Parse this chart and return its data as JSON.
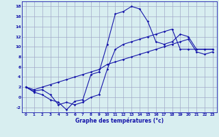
{
  "xlabel": "Graphe des températures (°c)",
  "hours": [
    0,
    1,
    2,
    3,
    4,
    5,
    6,
    7,
    8,
    9,
    10,
    11,
    12,
    13,
    14,
    15,
    16,
    17,
    18,
    19,
    20,
    21,
    22,
    23
  ],
  "line1": [
    2.0,
    1.0,
    0.5,
    -0.5,
    -1.0,
    -2.5,
    -0.8,
    -0.5,
    4.5,
    5.0,
    10.5,
    16.5,
    17.0,
    18.0,
    17.5,
    15.0,
    11.0,
    10.5,
    11.0,
    12.5,
    12.0,
    9.5,
    9.5,
    9.5
  ],
  "line2": [
    2.0,
    1.2,
    1.5,
    0.5,
    -1.5,
    -1.0,
    -1.5,
    -1.0,
    0.0,
    0.5,
    5.5,
    9.5,
    10.5,
    11.0,
    11.5,
    12.0,
    12.5,
    13.0,
    13.5,
    9.5,
    9.5,
    9.5,
    9.5,
    9.5
  ],
  "line3": [
    2.0,
    1.5,
    2.0,
    2.5,
    3.0,
    3.5,
    4.0,
    4.5,
    5.0,
    5.5,
    6.5,
    7.0,
    7.5,
    8.0,
    8.5,
    9.0,
    9.5,
    10.0,
    10.5,
    11.0,
    11.5,
    9.0,
    8.5,
    9.0
  ],
  "line_color": "#1515aa",
  "bg_color": "#d8eef0",
  "grid_color": "#a0a8c8",
  "ylim": [
    -3,
    19
  ],
  "yticks": [
    -2,
    0,
    2,
    4,
    6,
    8,
    10,
    12,
    14,
    16,
    18
  ],
  "marker": "D",
  "markersize": 1.8,
  "linewidth": 0.8
}
